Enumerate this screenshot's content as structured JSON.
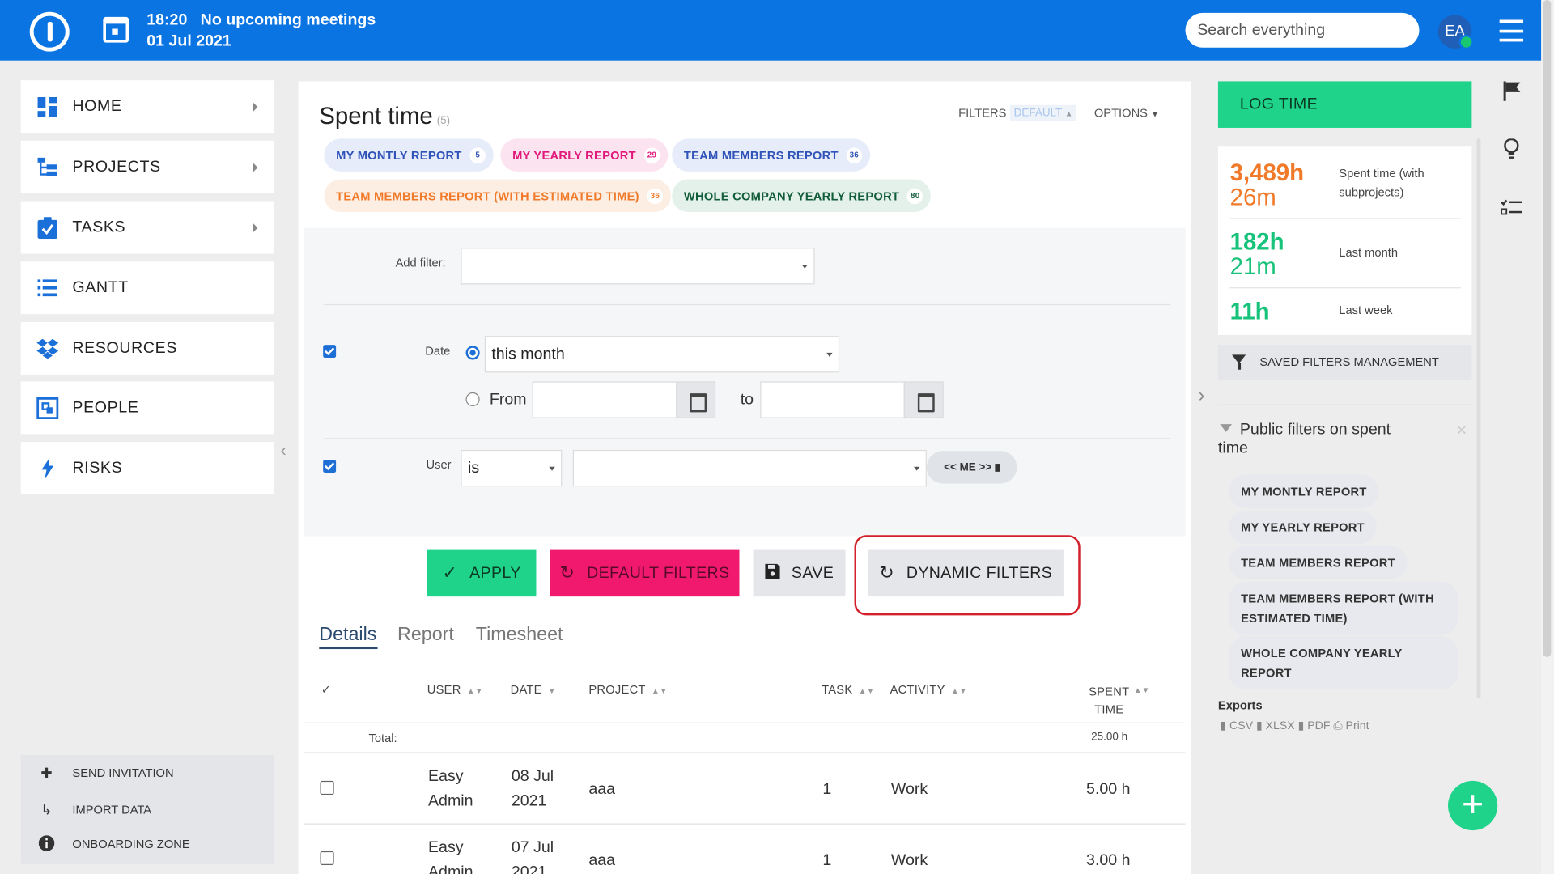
{
  "topbar": {
    "time": "18:20",
    "meetings": "No upcoming meetings",
    "date": "01 Jul 2021",
    "search_placeholder": "Search everything",
    "avatar_initials": "EA"
  },
  "sidebar": {
    "items": [
      {
        "label": "HOME"
      },
      {
        "label": "PROJECTS"
      },
      {
        "label": "TASKS"
      },
      {
        "label": "GANTT"
      },
      {
        "label": "RESOURCES"
      },
      {
        "label": "PEOPLE"
      },
      {
        "label": "RISKS"
      }
    ],
    "bottom": [
      {
        "label": "SEND INVITATION"
      },
      {
        "label": "IMPORT DATA"
      },
      {
        "label": "ONBOARDING ZONE"
      }
    ]
  },
  "page": {
    "title": "Spent time",
    "title_count": "(5)",
    "filters_label": "FILTERS",
    "default_label": "DEFAULT",
    "options_label": "OPTIONS"
  },
  "saved_queries": [
    {
      "label": "MY MONTLY REPORT",
      "count": "5"
    },
    {
      "label": "MY YEARLY REPORT",
      "count": "29"
    },
    {
      "label": "TEAM MEMBERS REPORT",
      "count": "36"
    },
    {
      "label": "TEAM MEMBERS REPORT (WITH ESTIMATED TIME)",
      "count": "36"
    },
    {
      "label": "WHOLE COMPANY YEARLY REPORT",
      "count": "80"
    }
  ],
  "filters": {
    "add_filter_label": "Add filter:",
    "add_filter_value": "",
    "date_label": "Date",
    "date_period": "this month",
    "from_label": "From",
    "to_label": "to",
    "user_label": "User",
    "user_operator": "is",
    "user_value": "",
    "me_button": "<< ME >>"
  },
  "actions": {
    "apply": "APPLY",
    "default_filters": "DEFAULT FILTERS",
    "save": "SAVE",
    "dynamic_filters": "DYNAMIC FILTERS"
  },
  "tabs": [
    {
      "label": "Details"
    },
    {
      "label": "Report"
    },
    {
      "label": "Timesheet"
    }
  ],
  "table": {
    "check_header": "✓",
    "columns": [
      "USER",
      "DATE",
      "PROJECT",
      "TASK",
      "ACTIVITY",
      "SPENT TIME"
    ],
    "total_label": "Total:",
    "total_value": "25.00 h",
    "rows": [
      {
        "user": "Easy Admin",
        "date": "08 Jul 2021",
        "project": "aaa",
        "task": "1",
        "activity": "Work",
        "spent": "5.00 h"
      },
      {
        "user": "Easy Admin",
        "date": "07 Jul 2021",
        "project": "aaa",
        "task": "1",
        "activity": "Work",
        "spent": "3.00 h"
      }
    ]
  },
  "right_panel": {
    "log_time": "LOG TIME",
    "stats": [
      {
        "value_h": "3,489h",
        "value_m": "26m",
        "label": "Spent time (with subprojects)",
        "color": "#f07a2a"
      },
      {
        "value_h": "182h",
        "value_m": "21m",
        "label": "Last month",
        "color": "#17c27a"
      },
      {
        "value_h": "11h",
        "value_m": "",
        "label": "Last week",
        "color": "#17c27a"
      }
    ],
    "saved_filters_management": "SAVED FILTERS MANAGEMENT",
    "public_filters_title": "Public filters on spent time",
    "public_filters": [
      "MY MONTLY REPORT",
      "MY YEARLY REPORT",
      "TEAM MEMBERS REPORT",
      "TEAM MEMBERS REPORT (WITH ESTIMATED TIME)",
      "WHOLE COMPANY YEARLY REPORT"
    ],
    "exports_label": "Exports",
    "exports": [
      "CSV",
      "XLSX",
      "PDF",
      "Print"
    ]
  },
  "colors": {
    "topbar": "#0a74e3",
    "apply": "#1fd48a",
    "default_filters": "#f0196e",
    "highlight": "#d3202a"
  }
}
